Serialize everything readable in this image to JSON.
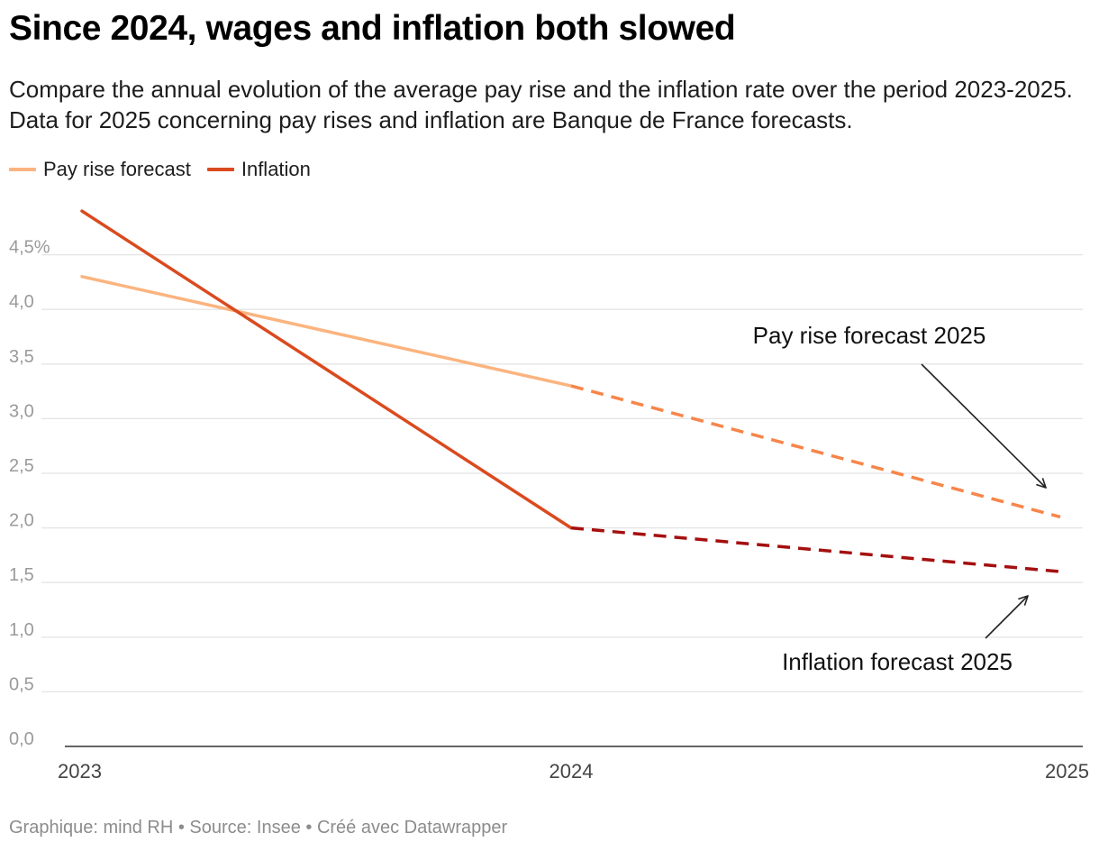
{
  "title": "Since 2024, wages and inflation both slowed",
  "subtitle": "Compare the annual evolution of the average pay rise and the inflation rate over the period 2023-2025. Data for 2025 concerning pay rises and inflation are Banque de France forecasts.",
  "footer": "Graphique: mind RH • Source: Insee • Créé avec Datawrapper",
  "colors": {
    "pay_rise": "#fbb47f",
    "pay_rise_forecast": "#f7854a",
    "inflation": "#da4a1f",
    "inflation_forecast": "#a50f0f",
    "grid": "#e4e4e4",
    "axis": "#333333",
    "tick_label": "#9a9a9a"
  },
  "legend": {
    "placement": "top-left",
    "items": [
      {
        "label": "Pay rise forecast",
        "color": "#fbb47f"
      },
      {
        "label": "Inflation",
        "color": "#da4a1f"
      }
    ]
  },
  "chart_data": {
    "type": "line",
    "x": [
      2023,
      2024,
      2025
    ],
    "x_tick_labels": [
      "2023",
      "2024",
      "2025"
    ],
    "ylim": [
      0,
      5
    ],
    "y_ticks": [
      0,
      0.5,
      1,
      1.5,
      2,
      2.5,
      3,
      3.5,
      4,
      4.5
    ],
    "y_tick_labels": [
      "0,0",
      "0,5",
      "1,0",
      "1,5",
      "2,0",
      "2,5",
      "3,0",
      "3,5",
      "4,0",
      "4,5%"
    ],
    "grid": true,
    "series": [
      {
        "name": "Pay rise forecast",
        "values": [
          4.3,
          3.3,
          2.1
        ],
        "color": "#fbb47f",
        "forecast_color": "#f7854a",
        "forecast_from_index": 1
      },
      {
        "name": "Inflation",
        "values": [
          4.9,
          2.0,
          1.6
        ],
        "color": "#da4a1f",
        "forecast_color": "#a50f0f",
        "forecast_from_index": 1
      }
    ],
    "annotations": [
      {
        "text": "Pay rise forecast 2025",
        "series": 0,
        "index": 2
      },
      {
        "text": "Inflation forecast 2025",
        "series": 1,
        "index": 2
      }
    ]
  }
}
